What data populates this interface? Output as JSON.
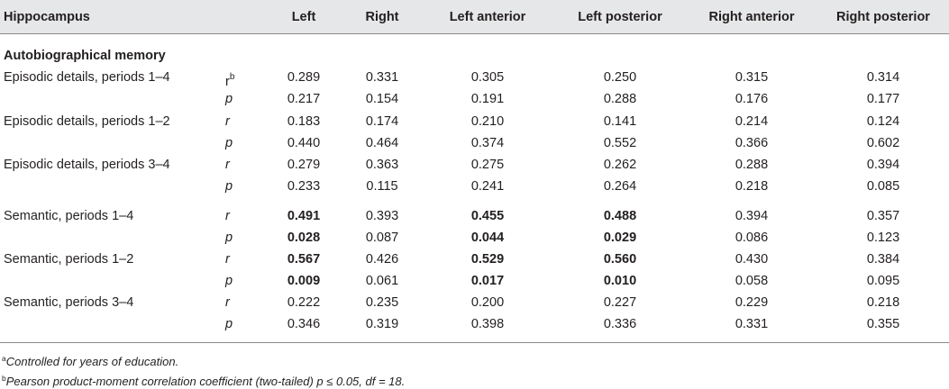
{
  "header": {
    "title": "Hippocampus",
    "columns": [
      "Left",
      "Right",
      "Left anterior",
      "Left posterior",
      "Right anterior",
      "Right posterior"
    ]
  },
  "section_title": "Autobiographical memory",
  "stat_sup": "b",
  "rows": [
    {
      "label": "Episodic details, periods 1–4",
      "stat": "r",
      "values": [
        "0.289",
        "0.331",
        "0.305",
        "0.250",
        "0.315",
        "0.314"
      ],
      "bold": [
        false,
        false,
        false,
        false,
        false,
        false
      ]
    },
    {
      "label": "",
      "stat": "p",
      "values": [
        "0.217",
        "0.154",
        "0.191",
        "0.288",
        "0.176",
        "0.177"
      ],
      "bold": [
        false,
        false,
        false,
        false,
        false,
        false
      ]
    },
    {
      "label": "Episodic details, periods 1–2",
      "stat": "r",
      "values": [
        "0.183",
        "0.174",
        "0.210",
        "0.141",
        "0.214",
        "0.124"
      ],
      "bold": [
        false,
        false,
        false,
        false,
        false,
        false
      ]
    },
    {
      "label": "",
      "stat": "p",
      "values": [
        "0.440",
        "0.464",
        "0.374",
        "0.552",
        "0.366",
        "0.602"
      ],
      "bold": [
        false,
        false,
        false,
        false,
        false,
        false
      ]
    },
    {
      "label": "Episodic details, periods 3–4",
      "stat": "r",
      "values": [
        "0.279",
        "0.363",
        "0.275",
        "0.262",
        "0.288",
        "0.394"
      ],
      "bold": [
        false,
        false,
        false,
        false,
        false,
        false
      ]
    },
    {
      "label": "",
      "stat": "p",
      "values": [
        "0.233",
        "0.115",
        "0.241",
        "0.264",
        "0.218",
        "0.085"
      ],
      "bold": [
        false,
        false,
        false,
        false,
        false,
        false
      ]
    },
    {
      "label": "Semantic, periods 1–4",
      "stat": "r",
      "values": [
        "0.491",
        "0.393",
        "0.455",
        "0.488",
        "0.394",
        "0.357"
      ],
      "bold": [
        true,
        false,
        true,
        true,
        false,
        false
      ]
    },
    {
      "label": "",
      "stat": "p",
      "values": [
        "0.028",
        "0.087",
        "0.044",
        "0.029",
        "0.086",
        "0.123"
      ],
      "bold": [
        true,
        false,
        true,
        true,
        false,
        false
      ]
    },
    {
      "label": "Semantic, periods 1–2",
      "stat": "r",
      "values": [
        "0.567",
        "0.426",
        "0.529",
        "0.560",
        "0.430",
        "0.384"
      ],
      "bold": [
        true,
        false,
        true,
        true,
        false,
        false
      ]
    },
    {
      "label": "",
      "stat": "p",
      "values": [
        "0.009",
        "0.061",
        "0.017",
        "0.010",
        "0.058",
        "0.095"
      ],
      "bold": [
        true,
        false,
        true,
        true,
        false,
        false
      ]
    },
    {
      "label": "Semantic, periods 3–4",
      "stat": "r",
      "values": [
        "0.222",
        "0.235",
        "0.200",
        "0.227",
        "0.229",
        "0.218"
      ],
      "bold": [
        false,
        false,
        false,
        false,
        false,
        false
      ]
    },
    {
      "label": "",
      "stat": "p",
      "values": [
        "0.346",
        "0.319",
        "0.398",
        "0.336",
        "0.331",
        "0.355"
      ],
      "bold": [
        false,
        false,
        false,
        false,
        false,
        false
      ]
    }
  ],
  "footnotes": [
    {
      "mark": "a",
      "text": "Controlled for years of education."
    },
    {
      "mark": "b",
      "text": "Pearson product-moment correlation coefficient (two-tailed) p ≤ 0.05, df = 18."
    }
  ]
}
